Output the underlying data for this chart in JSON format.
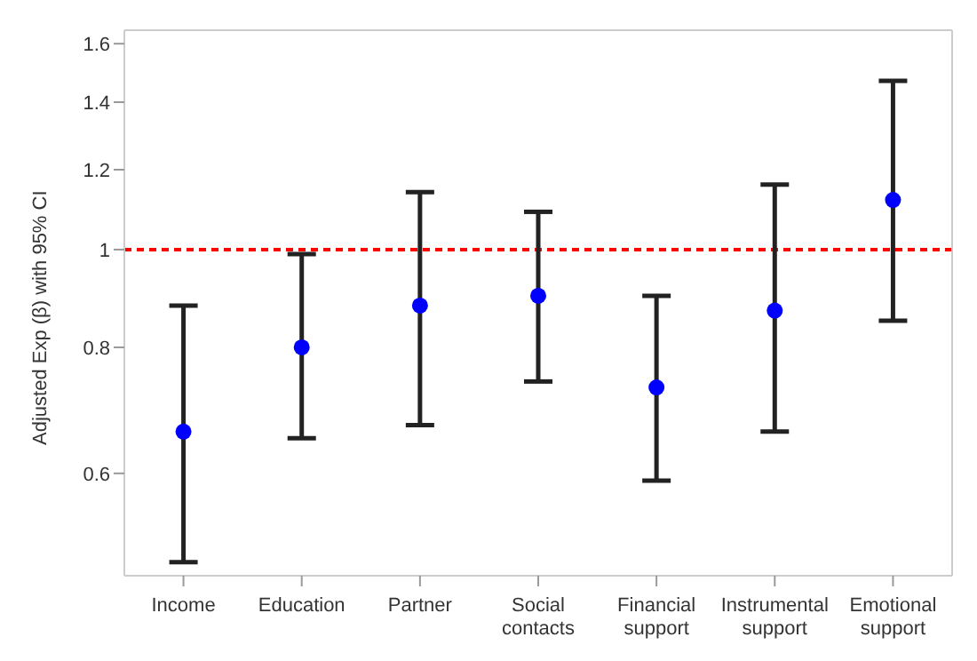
{
  "chart_data": {
    "type": "scatter",
    "ylabel": "Adjusted Exp (β) with 95% CI",
    "categories": [
      "Income",
      "Education",
      "Partner",
      "Social contacts",
      "Financial support",
      "Instrumental support",
      "Emotional support"
    ],
    "series": [
      {
        "color": "#0000ff",
        "values": [
          0.66,
          0.8,
          0.88,
          0.9,
          0.73,
          0.87,
          1.12
        ],
        "errors": [
          [
            0.49,
            0.88
          ],
          [
            0.65,
            0.99
          ],
          [
            0.67,
            1.14
          ],
          [
            0.74,
            1.09
          ],
          [
            0.59,
            0.9
          ],
          [
            0.66,
            1.16
          ],
          [
            0.85,
            1.47
          ]
        ]
      }
    ],
    "log": "y",
    "ylim": [
      0.475,
      1.65
    ],
    "yticks": [
      0.6,
      0.8,
      1,
      1.2,
      1.4,
      1.6
    ],
    "ref_lines": [
      {
        "axis": "y",
        "value": 1,
        "color": "#ff0000",
        "line_style": "dashed"
      }
    ],
    "marker": "circle",
    "legend": false
  }
}
